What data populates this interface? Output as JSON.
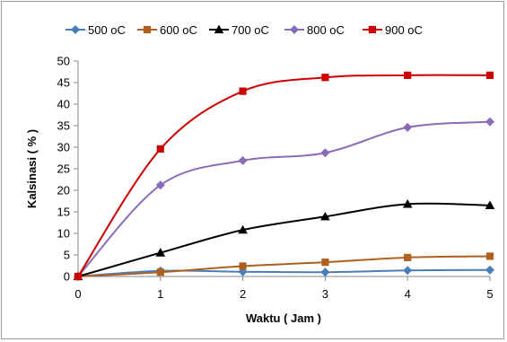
{
  "chart_data": {
    "type": "line",
    "xlabel": "Waktu ( Jam )",
    "ylabel": "Kalsinasi ( % )",
    "xlim": [
      0,
      5
    ],
    "ylim": [
      0,
      50
    ],
    "x_ticks": [
      0,
      1,
      2,
      3,
      4,
      5
    ],
    "y_ticks": [
      0,
      5,
      10,
      15,
      20,
      25,
      30,
      35,
      40,
      45,
      50
    ],
    "grid": false,
    "legend_position": "top",
    "x": [
      0,
      1,
      2,
      3,
      4,
      5
    ],
    "series": [
      {
        "name": "500 oC",
        "color": "#4a7ebb",
        "marker": "diamond",
        "values": [
          0,
          1.3,
          1.1,
          1.0,
          1.4,
          1.5
        ]
      },
      {
        "name": "600 oC",
        "color": "#b0601e",
        "marker": "square",
        "values": [
          0,
          1.0,
          2.4,
          3.3,
          4.4,
          4.7
        ]
      },
      {
        "name": "700 oC",
        "color": "#000000",
        "marker": "triangle",
        "values": [
          0,
          5.5,
          10.8,
          13.9,
          16.8,
          16.5
        ]
      },
      {
        "name": "800 oC",
        "color": "#8a6bb7",
        "marker": "diamond",
        "values": [
          0,
          21.2,
          26.9,
          28.7,
          34.6,
          35.9
        ]
      },
      {
        "name": "900 oC",
        "color": "#cc0000",
        "marker": "square",
        "values": [
          0,
          29.6,
          43.0,
          46.2,
          46.7,
          46.7
        ]
      }
    ]
  }
}
